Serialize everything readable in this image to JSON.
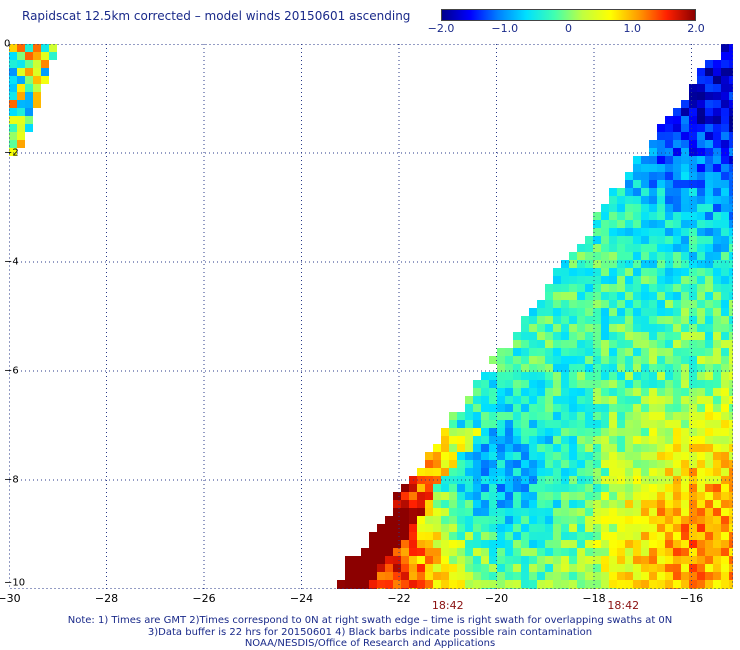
{
  "title": "Rapidscat 12.5km corrected – model winds 20150601 ascending",
  "colorbar": {
    "min": -2.0,
    "max": 2.0,
    "tick_labels": [
      "−2.0",
      "−1.0",
      "0",
      "1.0",
      "2.0"
    ],
    "tick_values": [
      -2.0,
      -1.0,
      0,
      1.0,
      2.0
    ],
    "colors": [
      "#00008c",
      "#0000ff",
      "#0080ff",
      "#00e0ff",
      "#40ffb0",
      "#c0ff40",
      "#ffff00",
      "#ff9a00",
      "#ff2000",
      "#8c0000"
    ]
  },
  "map": {
    "lon_range": [
      -30,
      -15
    ],
    "lat_range": [
      -10,
      0
    ],
    "x_tick_labels": [
      "−30",
      "−28",
      "−26",
      "−24",
      "−22",
      "−20",
      "−18",
      "−16"
    ],
    "x_tick_values": [
      -30,
      -28,
      -26,
      -24,
      -22,
      -20,
      -18,
      -16
    ],
    "y_tick_labels": [
      "0",
      "−2",
      "−4",
      "−6",
      "−8",
      "−10"
    ],
    "y_tick_values": [
      0,
      -2,
      -4,
      -6,
      -8,
      -10
    ],
    "grid": true,
    "pass_times": [
      {
        "label": "18:42",
        "lon": -21.0
      },
      {
        "label": "18:42",
        "lon": -17.4
      }
    ]
  },
  "chart_data": {
    "type": "heatmap",
    "title": "Rapidscat 12.5km corrected – model winds 20150601 ascending",
    "xlim": [
      -30,
      -15
    ],
    "ylim": [
      -10,
      0
    ],
    "value_range": [
      -2.0,
      2.0
    ],
    "swaths": [
      {
        "region": "upper-left fragment",
        "lon_range": [
          -30,
          -29.2
        ],
        "lat_range": [
          -2,
          0
        ]
      },
      {
        "region": "main swath",
        "lon_range": [
          -23.3,
          -15
        ],
        "lat_range": [
          -10,
          0
        ]
      }
    ],
    "regional_values": [
      {
        "region": "northeast corner near -15.5 lon, -0.5 lat",
        "approx_value": -1.8
      },
      {
        "region": "west edge of main swath near -22.5 lon, -9.2 lat",
        "approx_value": 1.9
      },
      {
        "region": "southeast near -15.8 lon, -9 lat",
        "approx_value": 1.2
      },
      {
        "region": "central swath near -20 lon, -8 lat",
        "approx_value": -1.1
      },
      {
        "region": "swath interior near -18 lon, -5 lat",
        "approx_value": -0.3
      }
    ]
  },
  "notes": [
    "Note: 1) Times are GMT 2)Times correspond to 0N at right swath edge – time is right swath for overlapping swaths at 0N",
    "3)Data buffer is 22 hrs for 20150601 4) Black barbs indicate possible rain contamination",
    "NOAA/NESDIS/Office of Research and Applications"
  ]
}
